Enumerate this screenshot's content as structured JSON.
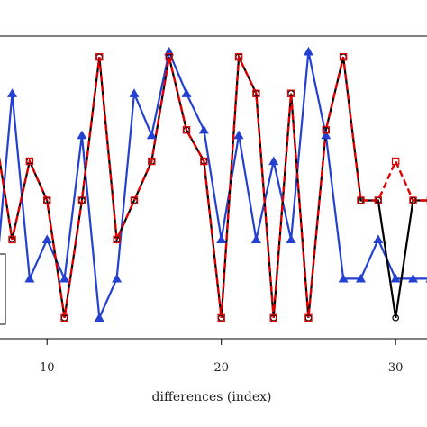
{
  "chart_data": {
    "type": "line",
    "xlabel": "differences (index)",
    "ylabel": "",
    "title": "",
    "xlim": [
      7.3,
      31.8
    ],
    "ylim": [
      -0.08,
      1.08
    ],
    "x_ticks": [
      10,
      20,
      30
    ],
    "x_tick_labels": [
      "10",
      "20",
      "30"
    ],
    "grid": false,
    "legend": "left (partially visible, no readable text)",
    "series": [
      {
        "marker": "open-circle",
        "color": "#000000",
        "style": "solid",
        "x": [
          7,
          8,
          9,
          10,
          11,
          12,
          13,
          14,
          15,
          16,
          17,
          18,
          19,
          20,
          21,
          22,
          23,
          24,
          25,
          26,
          27,
          28,
          29,
          30,
          31,
          32
        ],
        "y": [
          0.72,
          0.3,
          0.6,
          0.45,
          0.0,
          0.45,
          1.0,
          0.3,
          0.45,
          0.6,
          1.0,
          0.72,
          0.6,
          0.0,
          1.0,
          0.86,
          0.0,
          0.86,
          0.0,
          0.72,
          1.0,
          0.45,
          0.45,
          0.0,
          0.45,
          0.45
        ]
      },
      {
        "marker": "open-square",
        "color": "#e00000",
        "style": "dashed",
        "x": [
          7,
          8,
          9,
          10,
          11,
          12,
          13,
          14,
          15,
          16,
          17,
          18,
          19,
          20,
          21,
          22,
          23,
          24,
          25,
          26,
          27,
          28,
          29,
          30,
          31,
          32
        ],
        "y": [
          0.72,
          0.3,
          0.6,
          0.45,
          0.0,
          0.45,
          1.0,
          0.3,
          0.45,
          0.6,
          1.0,
          0.72,
          0.6,
          0.0,
          1.0,
          0.86,
          0.0,
          0.86,
          0.0,
          0.72,
          1.0,
          0.45,
          0.45,
          0.6,
          0.45,
          0.45
        ]
      },
      {
        "marker": "filled-triangle",
        "color": "#2340d0",
        "style": "solid",
        "x": [
          7,
          8,
          9,
          10,
          11,
          12,
          13,
          14,
          15,
          16,
          17,
          18,
          19,
          20,
          21,
          22,
          23,
          24,
          25,
          26,
          27,
          28,
          29,
          30,
          31,
          32
        ],
        "y": [
          0.1,
          0.86,
          0.15,
          0.3,
          0.15,
          0.7,
          0.0,
          0.15,
          0.86,
          0.7,
          1.02,
          0.86,
          0.72,
          0.3,
          0.7,
          0.3,
          0.6,
          0.3,
          1.02,
          0.7,
          0.15,
          0.15,
          0.3,
          0.15,
          0.15,
          0.15
        ]
      }
    ]
  }
}
